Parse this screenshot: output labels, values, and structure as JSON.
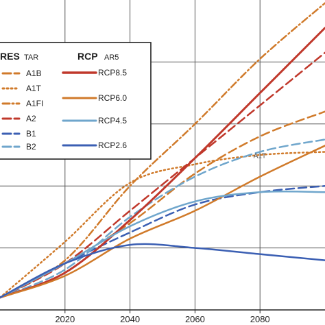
{
  "chart_data": {
    "type": "line",
    "xlim": [
      2000,
      2100
    ],
    "ylim": [
      0,
      1.0
    ],
    "grid": true,
    "x_ticks": [
      2020,
      2040,
      2060,
      2080
    ],
    "x_tick_labels": [
      "2020",
      "2040",
      "2060",
      "2080"
    ],
    "y_gridlines": [
      0.2,
      0.4,
      0.6,
      0.8
    ],
    "legend": {
      "placement": "top-left",
      "groups": [
        {
          "title": "SRES",
          "title_visible": "RES",
          "subtitle": "TAR",
          "entries": [
            "A1B",
            "A1T",
            "A1FI",
            "A2",
            "B1",
            "B2"
          ]
        },
        {
          "title": "RCP",
          "subtitle": "AR5",
          "entries": [
            "RCP8.5",
            "RCP6.0",
            "RCP4.5",
            "RCP2.6"
          ]
        }
      ]
    },
    "annotations": [
      {
        "text": "A1T",
        "x": 2078,
        "y": 0.49
      }
    ],
    "series": [
      {
        "name": "A1B",
        "group": "SRES",
        "color": "#d07a2a",
        "dash": "long",
        "width": 2.5,
        "x": [
          2000,
          2020,
          2040,
          2060,
          2080,
          2100
        ],
        "y": [
          0.04,
          0.15,
          0.28,
          0.44,
          0.56,
          0.64
        ]
      },
      {
        "name": "A1T",
        "group": "SRES",
        "color": "#d07a2a",
        "dash": "dot",
        "width": 2.5,
        "x": [
          2000,
          2020,
          2040,
          2060,
          2080,
          2100
        ],
        "y": [
          0.04,
          0.22,
          0.41,
          0.47,
          0.5,
          0.51
        ]
      },
      {
        "name": "A1FI",
        "group": "SRES",
        "color": "#d07a2a",
        "dash": "dashdot",
        "width": 2.5,
        "x": [
          2000,
          2020,
          2040,
          2060,
          2080,
          2100
        ],
        "y": [
          0.04,
          0.16,
          0.4,
          0.6,
          0.81,
          0.99
        ]
      },
      {
        "name": "A2",
        "group": "SRES",
        "color": "#c0382b",
        "dash": "long",
        "width": 2.5,
        "x": [
          2000,
          2020,
          2040,
          2060,
          2080,
          2100
        ],
        "y": [
          0.04,
          0.15,
          0.32,
          0.49,
          0.66,
          0.83
        ]
      },
      {
        "name": "B1",
        "group": "SRES",
        "color": "#3b5fb3",
        "dash": "long",
        "width": 2.5,
        "x": [
          2000,
          2020,
          2040,
          2060,
          2080,
          2100
        ],
        "y": [
          0.04,
          0.15,
          0.25,
          0.34,
          0.38,
          0.4
        ]
      },
      {
        "name": "B2",
        "group": "SRES",
        "color": "#6fa6cc",
        "dash": "long",
        "width": 2.5,
        "x": [
          2000,
          2020,
          2040,
          2060,
          2080,
          2100
        ],
        "y": [
          0.04,
          0.13,
          0.3,
          0.43,
          0.51,
          0.55
        ]
      },
      {
        "name": "RCP8.5",
        "group": "RCP",
        "color": "#c0382b",
        "dash": "solid",
        "width": 3,
        "x": [
          2000,
          2020,
          2040,
          2060,
          2080,
          2100
        ],
        "y": [
          0.04,
          0.12,
          0.29,
          0.49,
          0.7,
          0.91
        ]
      },
      {
        "name": "RCP6.0",
        "group": "RCP",
        "color": "#d07a2a",
        "dash": "solid",
        "width": 2.5,
        "x": [
          2000,
          2020,
          2040,
          2060,
          2080,
          2100
        ],
        "y": [
          0.04,
          0.11,
          0.23,
          0.32,
          0.43,
          0.53
        ]
      },
      {
        "name": "RCP4.5",
        "group": "RCP",
        "color": "#6fa6cc",
        "dash": "solid",
        "width": 2.5,
        "x": [
          2000,
          2020,
          2040,
          2060,
          2080,
          2100
        ],
        "y": [
          0.04,
          0.15,
          0.27,
          0.35,
          0.38,
          0.38
        ]
      },
      {
        "name": "RCP2.6",
        "group": "RCP",
        "color": "#3b5fb3",
        "dash": "solid",
        "width": 2.5,
        "x": [
          2000,
          2020,
          2040,
          2060,
          2080,
          2100
        ],
        "y": [
          0.04,
          0.15,
          0.21,
          0.2,
          0.18,
          0.16
        ]
      }
    ]
  }
}
